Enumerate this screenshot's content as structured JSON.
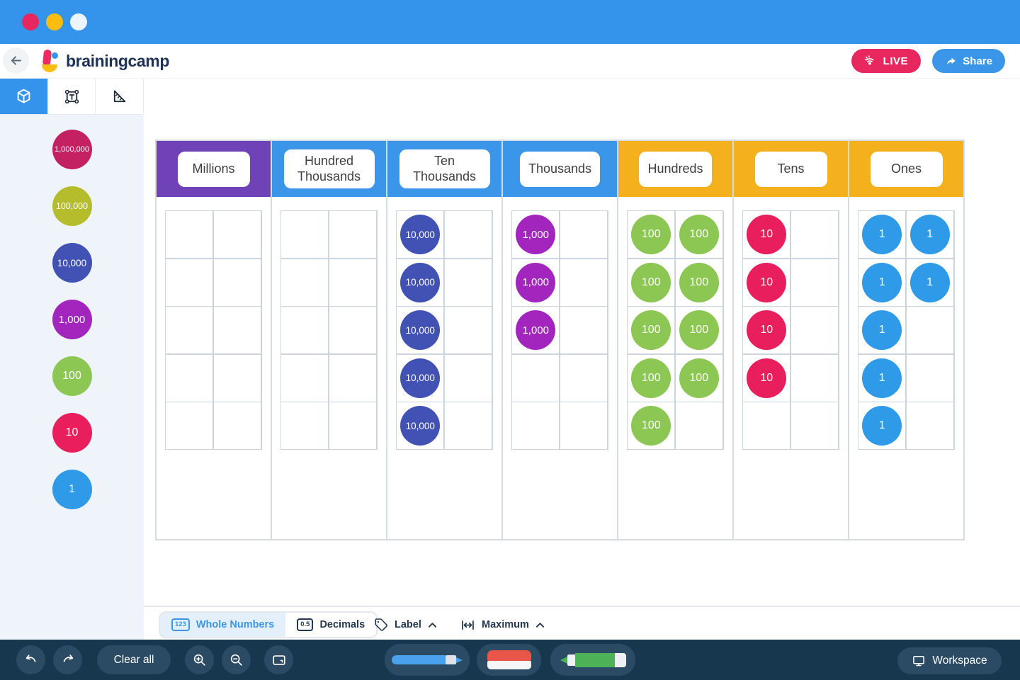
{
  "window": {
    "titlebar_color": "#3494ec",
    "traffic_lights": [
      "#e8275e",
      "#f8bd0e",
      "#ecf5fd"
    ]
  },
  "header": {
    "logo_text": "brainingcamp",
    "live_label": "LIVE",
    "share_label": "Share"
  },
  "tool_tabs": [
    {
      "id": "discs",
      "icon": "cube-icon",
      "active": true
    },
    {
      "id": "text",
      "icon": "text-box-icon",
      "active": false
    },
    {
      "id": "ruler",
      "icon": "ruler-icon",
      "active": false
    }
  ],
  "disc_palette": [
    {
      "label": "1,000,000",
      "color": "#c42162"
    },
    {
      "label": "100,000",
      "color": "#b5bd2c"
    },
    {
      "label": "10,000",
      "color": "#4152b4"
    },
    {
      "label": "1,000",
      "color": "#a226bd"
    },
    {
      "label": "100",
      "color": "#8cc653"
    },
    {
      "label": "10",
      "color": "#e81f5c"
    },
    {
      "label": "1",
      "color": "#2e9ae8"
    }
  ],
  "chart": {
    "rows": 5,
    "cols": 2,
    "columns": [
      {
        "header": "Millions",
        "color": "#6f42b8",
        "disc_label": "1,000,000",
        "disc_color": "#c42162",
        "filled": []
      },
      {
        "header": "Hundred Thousands",
        "color": "#3b96ea",
        "disc_label": "100,000",
        "disc_color": "#b5bd2c",
        "filled": []
      },
      {
        "header": "Ten Thousands",
        "color": "#3b96ea",
        "disc_label": "10,000",
        "disc_color": "#4152b4",
        "filled": [
          [
            0,
            0
          ],
          [
            1,
            0
          ],
          [
            2,
            0
          ],
          [
            3,
            0
          ],
          [
            4,
            0
          ]
        ]
      },
      {
        "header": "Thousands",
        "color": "#3b96ea",
        "disc_label": "1,000",
        "disc_color": "#a226bd",
        "filled": [
          [
            0,
            0
          ],
          [
            1,
            0
          ],
          [
            2,
            0
          ]
        ]
      },
      {
        "header": "Hundreds",
        "color": "#f5b01e",
        "disc_label": "100",
        "disc_color": "#8cc653",
        "filled": [
          [
            0,
            0
          ],
          [
            0,
            1
          ],
          [
            1,
            0
          ],
          [
            1,
            1
          ],
          [
            2,
            0
          ],
          [
            2,
            1
          ],
          [
            3,
            0
          ],
          [
            3,
            1
          ],
          [
            4,
            0
          ]
        ]
      },
      {
        "header": "Tens",
        "color": "#f5b01e",
        "disc_label": "10",
        "disc_color": "#e81f5c",
        "filled": [
          [
            0,
            0
          ],
          [
            1,
            0
          ],
          [
            2,
            0
          ],
          [
            3,
            0
          ]
        ]
      },
      {
        "header": "Ones",
        "color": "#f5b01e",
        "disc_label": "1",
        "disc_color": "#2e9ae8",
        "filled": [
          [
            0,
            0
          ],
          [
            0,
            1
          ],
          [
            1,
            0
          ],
          [
            1,
            1
          ],
          [
            2,
            0
          ],
          [
            3,
            0
          ],
          [
            4,
            0
          ]
        ]
      }
    ]
  },
  "settings_bar": {
    "number_mode": [
      {
        "label": "Whole Numbers",
        "badge": "123",
        "active": true
      },
      {
        "label": "Decimals",
        "badge": "0.5",
        "active": false
      }
    ],
    "label_control": "Label",
    "maximum_control": "Maximum"
  },
  "bottom_toolbar": {
    "clear_all": "Clear all",
    "workspace": "Workspace"
  }
}
